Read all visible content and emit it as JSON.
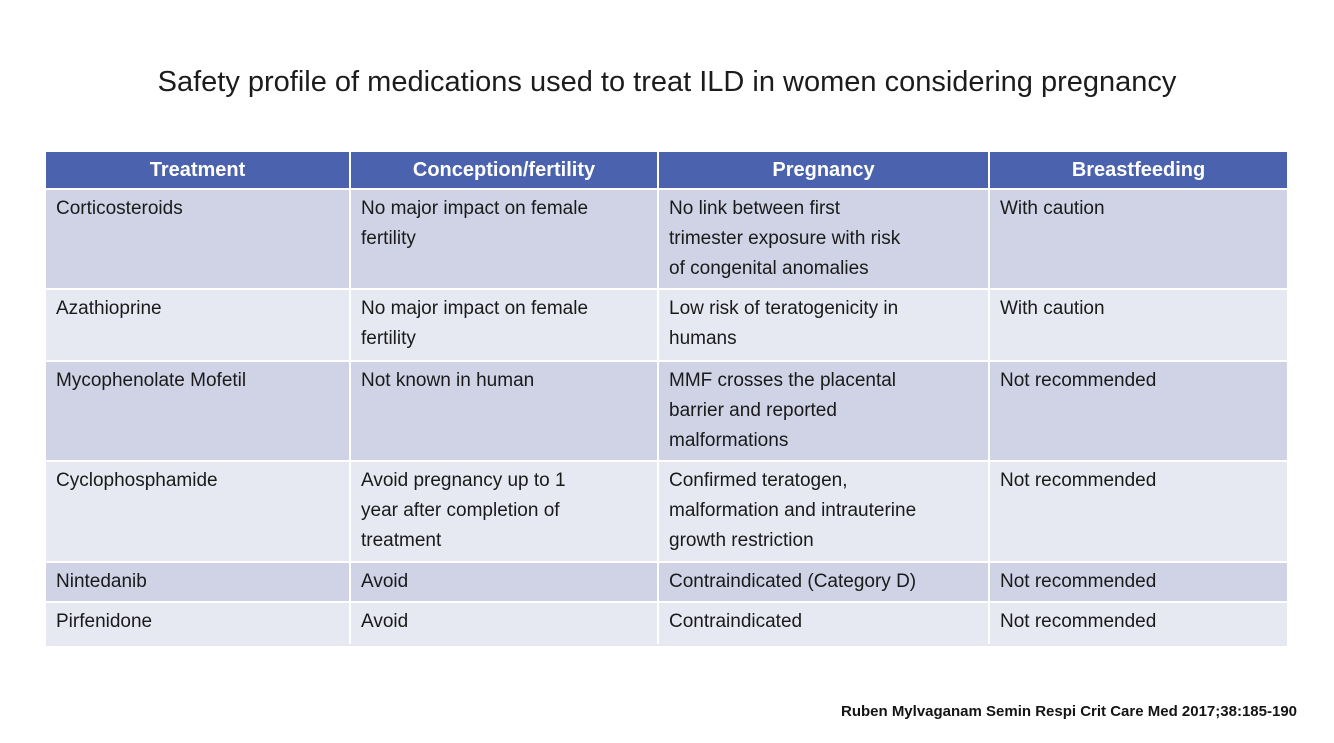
{
  "slide": {
    "title": "Safety profile of medications used to treat ILD in women considering pregnancy",
    "citation": "Ruben Mylvaganam Semin Respi Crit Care Med 2017;38:185-190"
  },
  "table": {
    "columns": [
      "Treatment",
      "Conception/fertility",
      "Pregnancy",
      "Breastfeeding"
    ],
    "rows": [
      {
        "treatment": "Corticosteroids",
        "conception": "No major impact on female\nfertility",
        "pregnancy": "No link between first\ntrimester exposure with risk\nof congenital anomalies",
        "breastfeeding": "With caution"
      },
      {
        "treatment": "Azathioprine",
        "conception": "No major impact on female\nfertility",
        "pregnancy": "Low risk of teratogenicity in\nhumans",
        "breastfeeding": "With caution"
      },
      {
        "treatment": "Mycophenolate Mofetil",
        "conception": "Not known in human",
        "pregnancy": "MMF crosses the placental\nbarrier and reported\nmalformations",
        "breastfeeding": "Not recommended"
      },
      {
        "treatment": "Cyclophosphamide",
        "conception": "Avoid pregnancy up to 1\nyear after completion of\ntreatment",
        "pregnancy": "Confirmed teratogen,\nmalformation and intrauterine\ngrowth restriction",
        "breastfeeding": "Not recommended"
      },
      {
        "treatment": "Nintedanib",
        "conception": "Avoid",
        "pregnancy": "Contraindicated (Category D)",
        "breastfeeding": "Not recommended"
      },
      {
        "treatment": "Pirfenidone",
        "conception": "Avoid",
        "pregnancy": "Contraindicated",
        "breastfeeding": "Not recommended"
      }
    ]
  },
  "colors": {
    "header_bg": "#4b63ae",
    "header_text": "#ffffff",
    "row_odd": "#cfd3e5",
    "row_even": "#e7e9f2"
  }
}
